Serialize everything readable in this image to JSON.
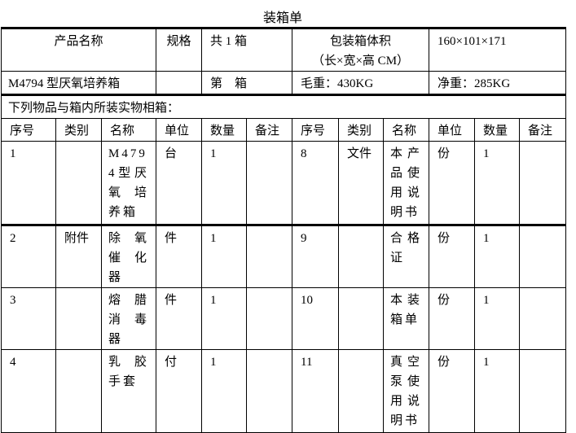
{
  "title": "装箱单",
  "header": {
    "product_name_label": "产品名称",
    "spec_label": "规格",
    "box_total": "共 1 箱",
    "volume_label": "包装箱体积",
    "volume_unit": "（长×宽×高 CM）",
    "volume_value": "160×101×171",
    "product_name": "M4794 型厌氧培养箱",
    "spec_value": "",
    "box_number": "第　箱",
    "gross_weight": "毛重：430KG",
    "net_weight": "净重：285KG"
  },
  "note": "下列物品与箱内所装实物相箱：",
  "columns": [
    "序号",
    "类别",
    "名称",
    "单位",
    "数量",
    "备注",
    "序号",
    "类别",
    "名称",
    "单位",
    "数量",
    "备注"
  ],
  "rows": [
    {
      "left": {
        "no": "1",
        "category": "",
        "name": "M4794型厌氧培养箱",
        "unit": "台",
        "qty": "1",
        "remark": ""
      },
      "right": {
        "no": "8",
        "category": "文件",
        "name": "本产品使用说明书",
        "unit": "份",
        "qty": "1",
        "remark": ""
      }
    },
    {
      "left": {
        "no": "2",
        "category": "附件",
        "name": "除氧催化器",
        "unit": "件",
        "qty": "1",
        "remark": ""
      },
      "right": {
        "no": "9",
        "category": "",
        "name": "合格证",
        "unit": "份",
        "qty": "1",
        "remark": ""
      }
    },
    {
      "left": {
        "no": "3",
        "category": "",
        "name": "熔腊消毒器",
        "unit": "件",
        "qty": "1",
        "remark": ""
      },
      "right": {
        "no": "10",
        "category": "",
        "name": "本装箱单",
        "unit": "份",
        "qty": "1",
        "remark": ""
      }
    },
    {
      "left": {
        "no": "4",
        "category": "",
        "name": "乳胶手套",
        "unit": "付",
        "qty": "1",
        "remark": ""
      },
      "right": {
        "no": "11",
        "category": "",
        "name": "真空泵使用说明书",
        "unit": "份",
        "qty": "1",
        "remark": ""
      }
    }
  ]
}
